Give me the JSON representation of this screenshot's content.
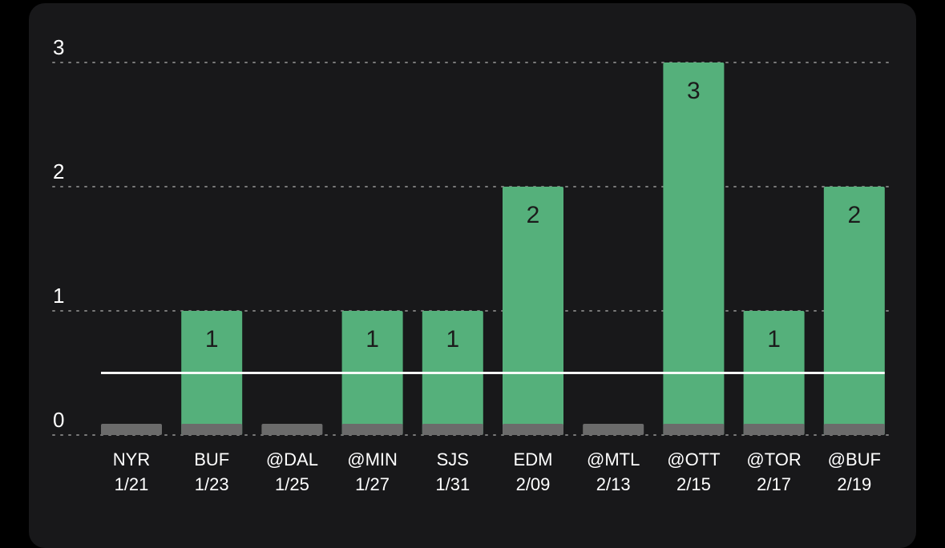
{
  "colors": {
    "background": "#000000",
    "card": "#18181a",
    "bar": "#55b07b",
    "base": "#6b6b6b",
    "grid": "#7a7a7a",
    "reference_line": "#ffffff",
    "axis_text": "#ffffff",
    "value_text": "#1b1b1b"
  },
  "chart_data": {
    "type": "bar",
    "categories": [
      {
        "team": "NYR",
        "date": "1/21"
      },
      {
        "team": "BUF",
        "date": "1/23"
      },
      {
        "team": "@DAL",
        "date": "1/25"
      },
      {
        "team": "@MIN",
        "date": "1/27"
      },
      {
        "team": "SJS",
        "date": "1/31"
      },
      {
        "team": "EDM",
        "date": "2/09"
      },
      {
        "team": "@MTL",
        "date": "2/13"
      },
      {
        "team": "@OTT",
        "date": "2/15"
      },
      {
        "team": "@TOR",
        "date": "2/17"
      },
      {
        "team": "@BUF",
        "date": "2/19"
      }
    ],
    "values": [
      0,
      1,
      0,
      1,
      1,
      2,
      0,
      3,
      1,
      2
    ],
    "value_labels": [
      "",
      "1",
      "",
      "1",
      "1",
      "2",
      "",
      "3",
      "1",
      "2"
    ],
    "yticks": [
      "0",
      "1",
      "2",
      "3"
    ],
    "ylim": [
      0,
      3
    ],
    "reference_line": 0.5,
    "grid": true,
    "title": "",
    "xlabel": "",
    "ylabel": ""
  }
}
